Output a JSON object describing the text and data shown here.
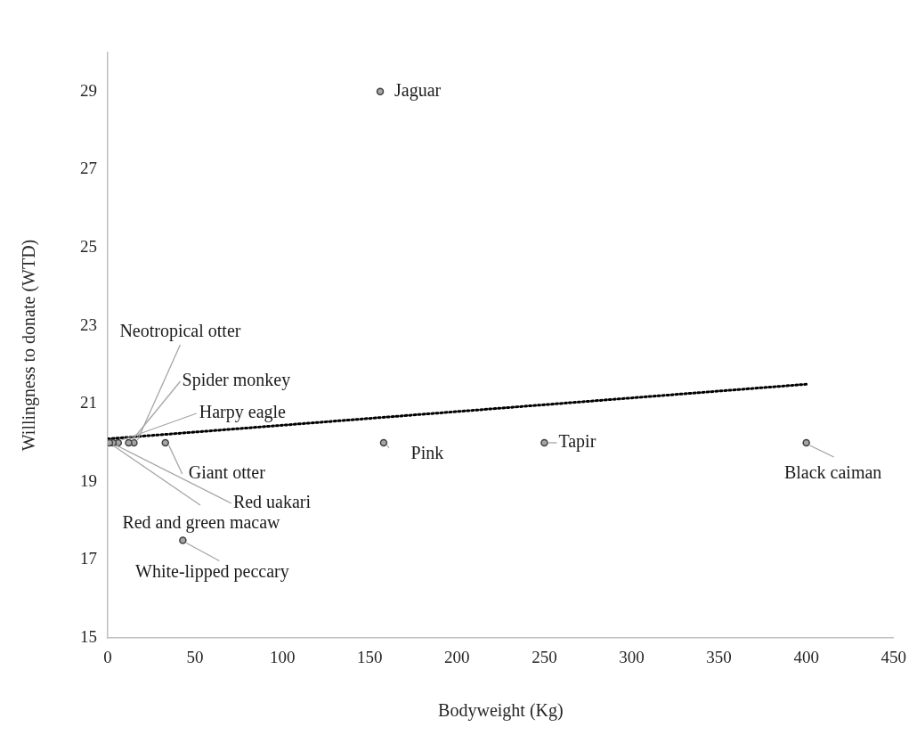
{
  "chart_data": {
    "type": "scatter",
    "xlabel": "Bodyweight (Kg)",
    "ylabel": "Willingness to donate (WTD)",
    "xlim": [
      0,
      450
    ],
    "xticks": [
      0,
      50,
      100,
      150,
      200,
      250,
      300,
      350,
      400,
      450
    ],
    "ylim": [
      15,
      30
    ],
    "yticks": [
      15,
      17,
      19,
      21,
      23,
      25,
      27,
      29
    ],
    "grid": false,
    "legend": false,
    "marker": "circle",
    "series": [
      {
        "type": "scatter",
        "color": "#a6a6a6",
        "x": [
          156,
          158,
          250,
          400,
          43,
          33,
          15,
          12,
          6,
          3,
          1
        ],
        "values": [
          29,
          20,
          20,
          20,
          17.5,
          20,
          20,
          20,
          20,
          20,
          20
        ]
      },
      {
        "type": "line",
        "color": "#000000",
        "line_style": "dotted",
        "marker": "none",
        "x": [
          0,
          400
        ],
        "values": [
          20.1,
          21.5
        ]
      }
    ],
    "annotations": [
      {
        "text": "Jaguar",
        "x": 156,
        "y": 29
      },
      {
        "text": "Pink",
        "x": 158,
        "y": 20
      },
      {
        "text": "Tapir",
        "x": 250,
        "y": 20
      },
      {
        "text": "Black caiman",
        "x": 400,
        "y": 20
      },
      {
        "text": "White-lipped peccary",
        "x": 43,
        "y": 17.5
      },
      {
        "text": "Giant otter",
        "x": 33,
        "y": 20
      },
      {
        "text": "Neotropical otter",
        "x": 15,
        "y": 20
      },
      {
        "text": "Spider monkey",
        "x": 12,
        "y": 20
      },
      {
        "text": "Harpy eagle",
        "x": 6,
        "y": 20
      },
      {
        "text": "Red uakari",
        "x": 3,
        "y": 20
      },
      {
        "text": "Red and green macaw",
        "x": 1,
        "y": 20
      }
    ]
  }
}
